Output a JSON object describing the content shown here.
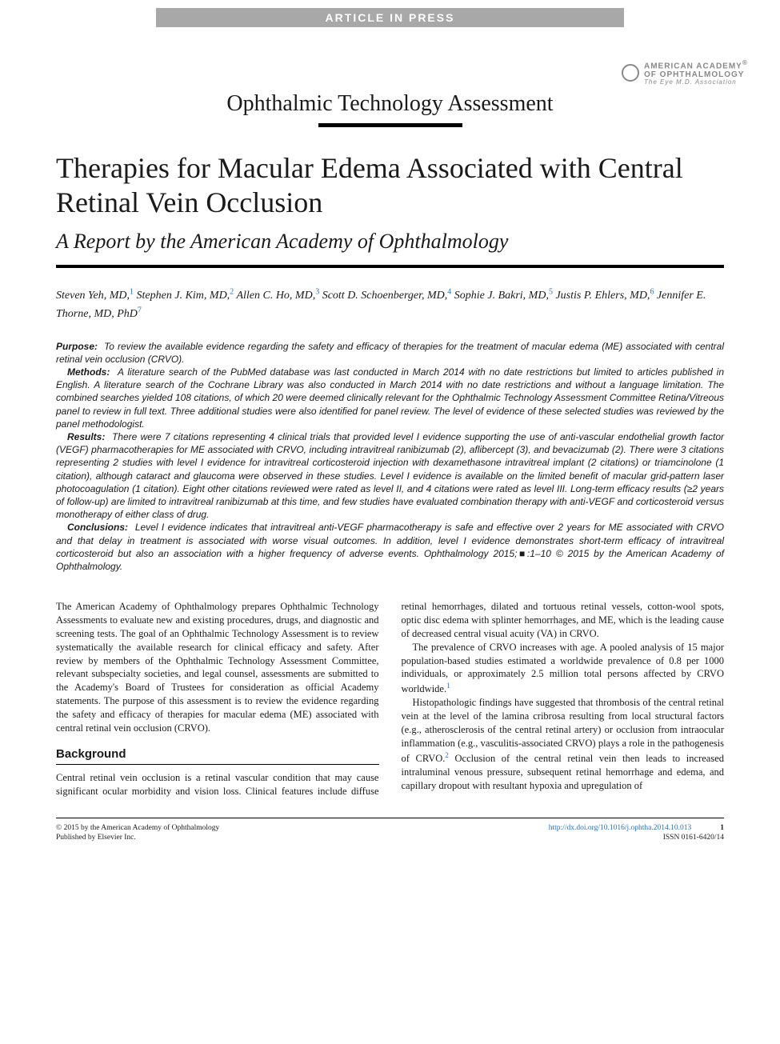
{
  "banner": "ARTICLE IN PRESS",
  "logo": {
    "line1": "AMERICAN ACADEMY",
    "line2": "OF OPHTHALMOLOGY",
    "tagline": "The Eye M.D. Association"
  },
  "section_label": "Ophthalmic Technology Assessment",
  "title": "Therapies for Macular Edema Associated with Central Retinal Vein Occlusion",
  "subtitle": "A Report by the American Academy of Ophthalmology",
  "authors": [
    {
      "name": "Steven Yeh, MD,",
      "aff": "1"
    },
    {
      "name": "Stephen J. Kim, MD,",
      "aff": "2"
    },
    {
      "name": "Allen C. Ho, MD,",
      "aff": "3"
    },
    {
      "name": "Scott D. Schoenberger, MD,",
      "aff": "4"
    },
    {
      "name": "Sophie J. Bakri, MD,",
      "aff": "5"
    },
    {
      "name": "Justis P. Ehlers, MD,",
      "aff": "6"
    },
    {
      "name": "Jennifer E. Thorne, MD, PhD",
      "aff": "7"
    }
  ],
  "abstract": {
    "purpose_label": "Purpose:",
    "purpose": "To review the available evidence regarding the safety and efficacy of therapies for the treatment of macular edema (ME) associated with central retinal vein occlusion (CRVO).",
    "methods_label": "Methods:",
    "methods": "A literature search of the PubMed database was last conducted in March 2014 with no date restrictions but limited to articles published in English. A literature search of the Cochrane Library was also conducted in March 2014 with no date restrictions and without a language limitation. The combined searches yielded 108 citations, of which 20 were deemed clinically relevant for the Ophthalmic Technology Assessment Committee Retina/Vitreous panel to review in full text. Three additional studies were also identified for panel review. The level of evidence of these selected studies was reviewed by the panel methodologist.",
    "results_label": "Results:",
    "results": "There were 7 citations representing 4 clinical trials that provided level I evidence supporting the use of anti-vascular endothelial growth factor (VEGF) pharmacotherapies for ME associated with CRVO, including intravitreal ranibizumab (2), aflibercept (3), and bevacizumab (2). There were 3 citations representing 2 studies with level I evidence for intravitreal corticosteroid injection with dexamethasone intravitreal implant (2 citations) or triamcinolone (1 citation), although cataract and glaucoma were observed in these studies. Level I evidence is available on the limited benefit of macular grid-pattern laser photocoagulation (1 citation). Eight other citations reviewed were rated as level II, and 4 citations were rated as level III. Long-term efficacy results (≥2 years of follow-up) are limited to intravitreal ranibizumab at this time, and few studies have evaluated combination therapy with anti-VEGF and corticosteroid versus monotherapy of either class of drug.",
    "conclusions_label": "Conclusions:",
    "conclusions": "Level I evidence indicates that intravitreal anti-VEGF pharmacotherapy is safe and effective over 2 years for ME associated with CRVO and that delay in treatment is associated with worse visual outcomes. In addition, level I evidence demonstrates short-term efficacy of intravitreal corticosteroid but also an association with a higher frequency of adverse events. Ophthalmology 2015;■:1–10 © 2015 by the American Academy of Ophthalmology."
  },
  "body": {
    "intro": "The American Academy of Ophthalmology prepares Ophthalmic Technology Assessments to evaluate new and existing procedures, drugs, and diagnostic and screening tests. The goal of an Ophthalmic Technology Assessment is to review systematically the available research for clinical efficacy and safety. After review by members of the Ophthalmic Technology Assessment Committee, relevant subspecialty societies, and legal counsel, assessments are submitted to the Academy's Board of Trustees for consideration as official Academy statements. The purpose of this assessment is to review the evidence regarding the safety and efficacy of therapies for macular edema (ME) associated with central retinal vein occlusion (CRVO).",
    "background_heading": "Background",
    "background_p1": "Central retinal vein occlusion is a retinal vascular condition that may cause significant ocular morbidity and vision loss. Clinical features include diffuse retinal hemorrhages, dilated and tortuous retinal vessels, cotton-wool spots, optic disc edema with splinter hemorrhages, and ME, which is the leading cause of decreased central visual acuity (VA) in CRVO.",
    "background_p2a": "The prevalence of CRVO increases with age. A pooled analysis of 15 major population-based studies estimated a worldwide prevalence of 0.8 per 1000 individuals, or approximately 2.5 million total persons affected by CRVO worldwide.",
    "background_p2_ref": "1",
    "background_p3a": "Histopathologic findings have suggested that thrombosis of the central retinal vein at the level of the lamina cribrosa resulting from local structural factors (e.g., atherosclerosis of the central retinal artery) or occlusion from intraocular inflammation (e.g., vasculitis-associated CRVO) plays a role in the pathogenesis of CRVO.",
    "background_p3_ref": "2",
    "background_p3b": " Occlusion of the central retinal vein then leads to increased intraluminal venous pressure, subsequent retinal hemorrhage and edema, and capillary dropout with resultant hypoxia and upregulation of"
  },
  "footer": {
    "copyright": "© 2015 by the American Academy of Ophthalmology",
    "publisher": "Published by Elsevier Inc.",
    "doi": "http://dx.doi.org/10.1016/j.ophtha.2014.10.013",
    "issn": "ISSN 0161-6420/14",
    "page": "1"
  },
  "colors": {
    "banner_bg": "#a8a8a8",
    "banner_fg": "#ffffff",
    "link": "#2a6ebb",
    "text": "#1a1a1a",
    "logo_gray": "#888888"
  },
  "typography": {
    "title_pt": 36,
    "subtitle_pt": 26,
    "section_label_pt": 28,
    "authors_pt": 14,
    "abstract_pt": 12,
    "body_pt": 12.5,
    "footer_pt": 9.5
  }
}
